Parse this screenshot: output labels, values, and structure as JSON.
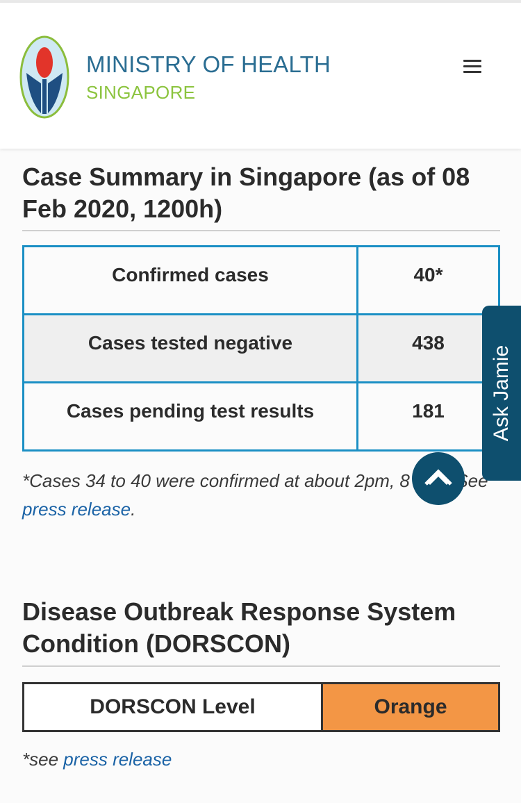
{
  "header": {
    "brand_line1": "MINISTRY OF HEALTH",
    "brand_line2": "SINGAPORE",
    "logo_icon": "moh-logo",
    "menu_icon": "hamburger-menu-icon"
  },
  "case_summary": {
    "title": "Case Summary in Singapore (as of 08 Feb 2020, 1200h)",
    "rows": [
      {
        "label": "Confirmed cases",
        "value": "40*"
      },
      {
        "label": "Cases tested negative",
        "value": "438"
      },
      {
        "label": "Cases pending test results",
        "value": "181"
      }
    ],
    "note_text": "*Cases 34 to 40 were confirmed at about 2pm, 8 Feb.  See ",
    "note_link": "press release",
    "note_end": "."
  },
  "dorscon": {
    "title": "Disease Outbreak Response System Condition (DORSCON)",
    "label": "DORSCON Level",
    "value": "Orange",
    "value_color": "#f39645",
    "see_text": "*see ",
    "see_link": "press release"
  },
  "widgets": {
    "ask_label": "Ask Jamie",
    "scroll_top_icon": "chevron-up-icon"
  },
  "colors": {
    "brand_blue": "#2a6d92",
    "brand_green": "#8cc43f",
    "table_border": "#1a8fc4",
    "widget_bg": "#0e4f6e",
    "link": "#1b63a6"
  }
}
